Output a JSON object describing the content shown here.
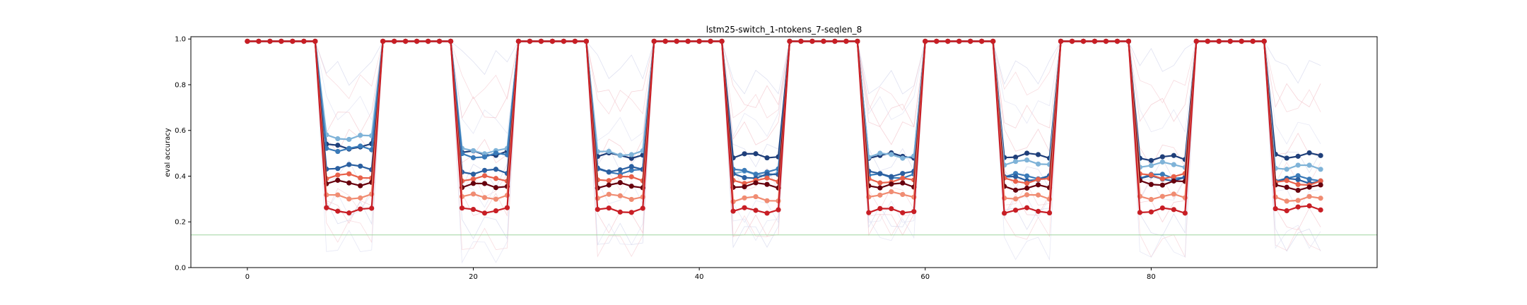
{
  "chart_data": {
    "type": "line",
    "title": "lstm25-switch_1-ntokens_7-seqlen_8",
    "xlabel": "",
    "ylabel": "eval accuracy",
    "xlim": [
      -5,
      100
    ],
    "ylim": [
      0.0,
      1.01
    ],
    "x_ticks": [
      0,
      20,
      40,
      60,
      80
    ],
    "y_ticks": [
      "0.0",
      "0.2",
      "0.4",
      "0.6",
      "0.8",
      "1.0"
    ],
    "grid": false,
    "legend": "none",
    "baseline": {
      "y": 0.1429,
      "color": "#9fd49f"
    },
    "phase_pattern": {
      "high_start": [
        0,
        12,
        24,
        36,
        48,
        60,
        72,
        84
      ],
      "high_len": 7,
      "low_start": [
        7,
        19,
        31,
        43,
        55,
        67,
        79,
        91
      ],
      "low_len": 5,
      "high_value": 0.99
    },
    "series": [
      {
        "color": "#1f3f7a",
        "low_values": [
          0.53,
          0.5,
          0.49,
          0.49,
          0.49,
          0.49,
          0.48,
          0.49
        ]
      },
      {
        "color": "#7fb3d8",
        "low_values": [
          0.57,
          0.51,
          0.5,
          0.41,
          0.49,
          0.46,
          0.45,
          0.44
        ]
      },
      {
        "color": "#3a7ab8",
        "low_values": [
          0.52,
          0.49,
          0.42,
          0.42,
          0.4,
          0.4,
          0.4,
          0.39
        ]
      },
      {
        "color": "#2a5fa0",
        "low_values": [
          0.44,
          0.42,
          0.43,
          0.4,
          0.41,
          0.39,
          0.39,
          0.38
        ]
      },
      {
        "color": "#e8614a",
        "low_values": [
          0.4,
          0.39,
          0.39,
          0.38,
          0.38,
          0.38,
          0.4,
          0.37
        ]
      },
      {
        "color": "#67000d",
        "low_values": [
          0.37,
          0.36,
          0.36,
          0.36,
          0.36,
          0.35,
          0.37,
          0.35
        ]
      },
      {
        "color": "#f08c72",
        "low_values": [
          0.31,
          0.31,
          0.31,
          0.3,
          0.32,
          0.31,
          0.31,
          0.3
        ]
      },
      {
        "color": "#c81e25",
        "low_values": [
          0.25,
          0.25,
          0.25,
          0.25,
          0.25,
          0.25,
          0.25,
          0.26
        ]
      }
    ],
    "faint_series_colors": [
      "#c9cde8",
      "#f3c4cc",
      "#d7d9ee",
      "#f0b8c0"
    ]
  }
}
